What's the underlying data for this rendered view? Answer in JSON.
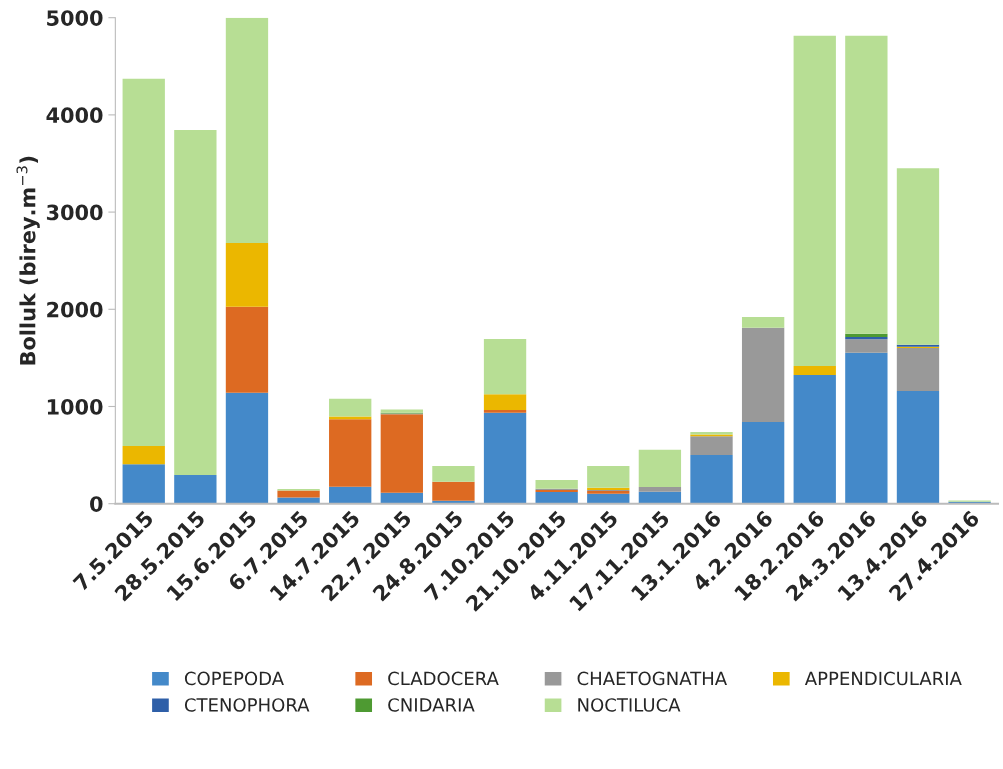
{
  "chart_data": {
    "type": "bar",
    "stacked": true,
    "ylabel": "Bolluk (birey.m$^{−3}$)",
    "categories": [
      "7.5.2015",
      "28.5.2015",
      "15.6.2015",
      "6.7.2015",
      "14.7.2015",
      "22.7.2015",
      "24.8.2015",
      "7.10.2015",
      "21.10.2015",
      "4.11.2015",
      "17.11.2015",
      "13.1.2016",
      "4.2.2016",
      "18.2.2016",
      "24.3.2016",
      "13.4.2016",
      "27.4.2016"
    ],
    "series": [
      {
        "name": "COPEPODA",
        "color": "#4489c9",
        "values": [
          405,
          295,
          1142,
          65,
          175,
          113,
          31,
          936,
          120,
          103,
          123,
          501,
          840,
          1324,
          1553,
          1159,
          21
        ]
      },
      {
        "name": "CLADOCERA",
        "color": "#dd6a22",
        "values": [
          0,
          0,
          885,
          72,
          693,
          806,
          195,
          28,
          21,
          27,
          0,
          0,
          0,
          0,
          0,
          0,
          0
        ]
      },
      {
        "name": "CHAETOGNATHA",
        "color": "#999999",
        "values": [
          0,
          0,
          0,
          0,
          0,
          10,
          0,
          0,
          13,
          10,
          48,
          192,
          971,
          0,
          138,
          442,
          0
        ]
      },
      {
        "name": "APPENDICULARIA",
        "color": "#ebb700",
        "values": [
          188,
          0,
          655,
          0,
          30,
          0,
          0,
          161,
          0,
          25,
          0,
          20,
          0,
          92,
          0,
          14,
          0
        ]
      },
      {
        "name": "CTENOPHORA",
        "color": "#2e5fa8",
        "values": [
          0,
          0,
          0,
          0,
          0,
          0,
          0,
          0,
          0,
          0,
          0,
          0,
          0,
          0,
          24,
          21,
          0
        ]
      },
      {
        "name": "CNIDARIA",
        "color": "#4e9a32",
        "values": [
          0,
          0,
          0,
          0,
          0,
          7,
          0,
          0,
          0,
          0,
          0,
          0,
          0,
          0,
          34,
          0,
          0
        ]
      },
      {
        "name": "NOCTILUCA",
        "color": "#b7de94",
        "values": [
          3779,
          3549,
          2318,
          14,
          182,
          34,
          162,
          569,
          89,
          223,
          385,
          24,
          109,
          3399,
          3066,
          1814,
          13
        ]
      }
    ],
    "ylim": [
      0,
      5000
    ],
    "yticks": [
      0,
      1000,
      2000,
      3000,
      4000,
      5000
    ],
    "grid": false,
    "legend": "bottom"
  }
}
